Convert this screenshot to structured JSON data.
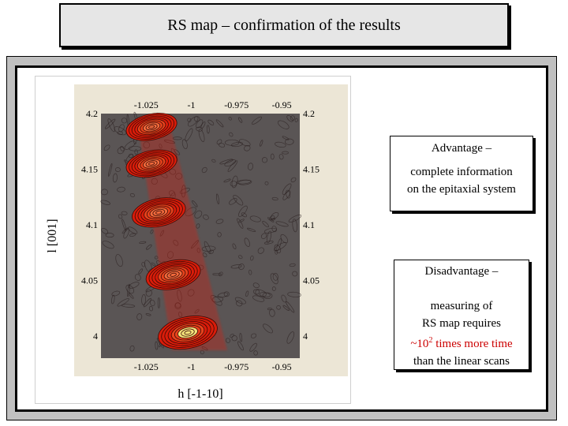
{
  "slide": {
    "title": "RS map – confirmation of the results"
  },
  "advantage": {
    "heading": "Advantage –",
    "line1": "complete information",
    "line2": "on the epitaxial system"
  },
  "disadvantage": {
    "heading": "Disadvantage –",
    "line1": "measuring of",
    "line2": "RS map requires",
    "line3_prefix": "~10",
    "line3_exp": "2",
    "line3_suffix": " times more time",
    "line4": "than the linear scans"
  },
  "colors": {
    "map_background": "#5a5555",
    "contour_red": "#d91c0a",
    "peak_highlight": "#f3e27a",
    "accent_red_text": "#cc0000"
  },
  "chart_data": {
    "type": "heatmap",
    "xlabel": "h [-1-10]",
    "ylabel": "l [001]",
    "xlim": [
      -1.05,
      -0.94
    ],
    "ylim": [
      3.98,
      4.2
    ],
    "x_ticks": [
      "-1.025",
      "-1",
      "-0.975",
      "-0.95"
    ],
    "x_tick_values": [
      -1.025,
      -1.0,
      -0.975,
      -0.95
    ],
    "y_ticks": [
      "4.2",
      "4.15",
      "4.1",
      "4.05",
      "4"
    ],
    "y_tick_values": [
      4.2,
      4.15,
      4.1,
      4.05,
      4.0
    ],
    "peaks": [
      {
        "h": -1.022,
        "l": 4.188,
        "relative_intensity": 0.55
      },
      {
        "h": -1.022,
        "l": 4.155,
        "relative_intensity": 0.55
      },
      {
        "h": -1.018,
        "l": 4.111,
        "relative_intensity": 0.7
      },
      {
        "h": -1.01,
        "l": 4.055,
        "relative_intensity": 0.75
      },
      {
        "h": -1.002,
        "l": 4.003,
        "relative_intensity": 1.0
      }
    ]
  }
}
